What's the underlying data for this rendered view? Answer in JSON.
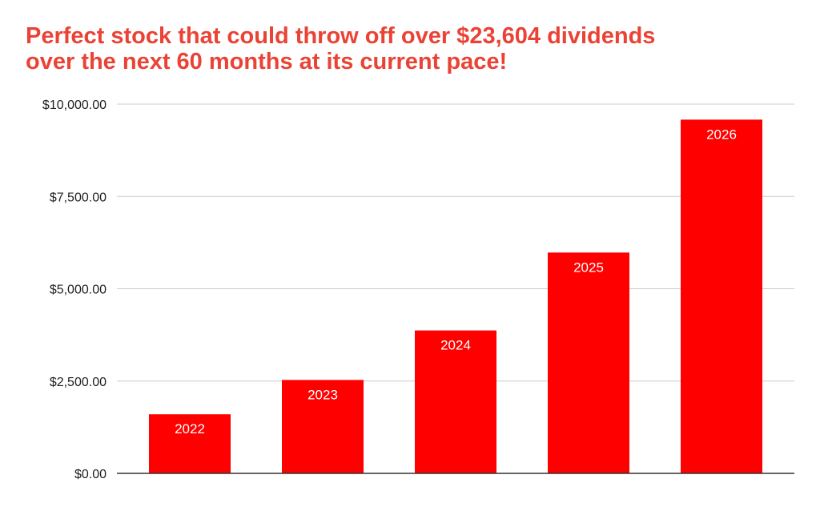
{
  "chart_data": {
    "type": "bar",
    "title_lines": [
      "Perfect stock that could throw off over $23,604 dividends",
      "over the next 60 months at its current pace!"
    ],
    "categories": [
      "2022",
      "2023",
      "2024",
      "2025",
      "2026"
    ],
    "values": [
      1600,
      2530,
      3870,
      5980,
      9580
    ],
    "ylim": [
      0,
      10000
    ],
    "yticks": [
      0,
      2500,
      5000,
      7500,
      10000
    ],
    "ytick_labels": [
      "$0.00",
      "$2,500.00",
      "$5,000.00",
      "$7,500.00",
      "$10,000.00"
    ],
    "grid": true,
    "bar_color": "#ff0000",
    "title_color": "#ea4335",
    "data_labels": "category-inside-top"
  }
}
